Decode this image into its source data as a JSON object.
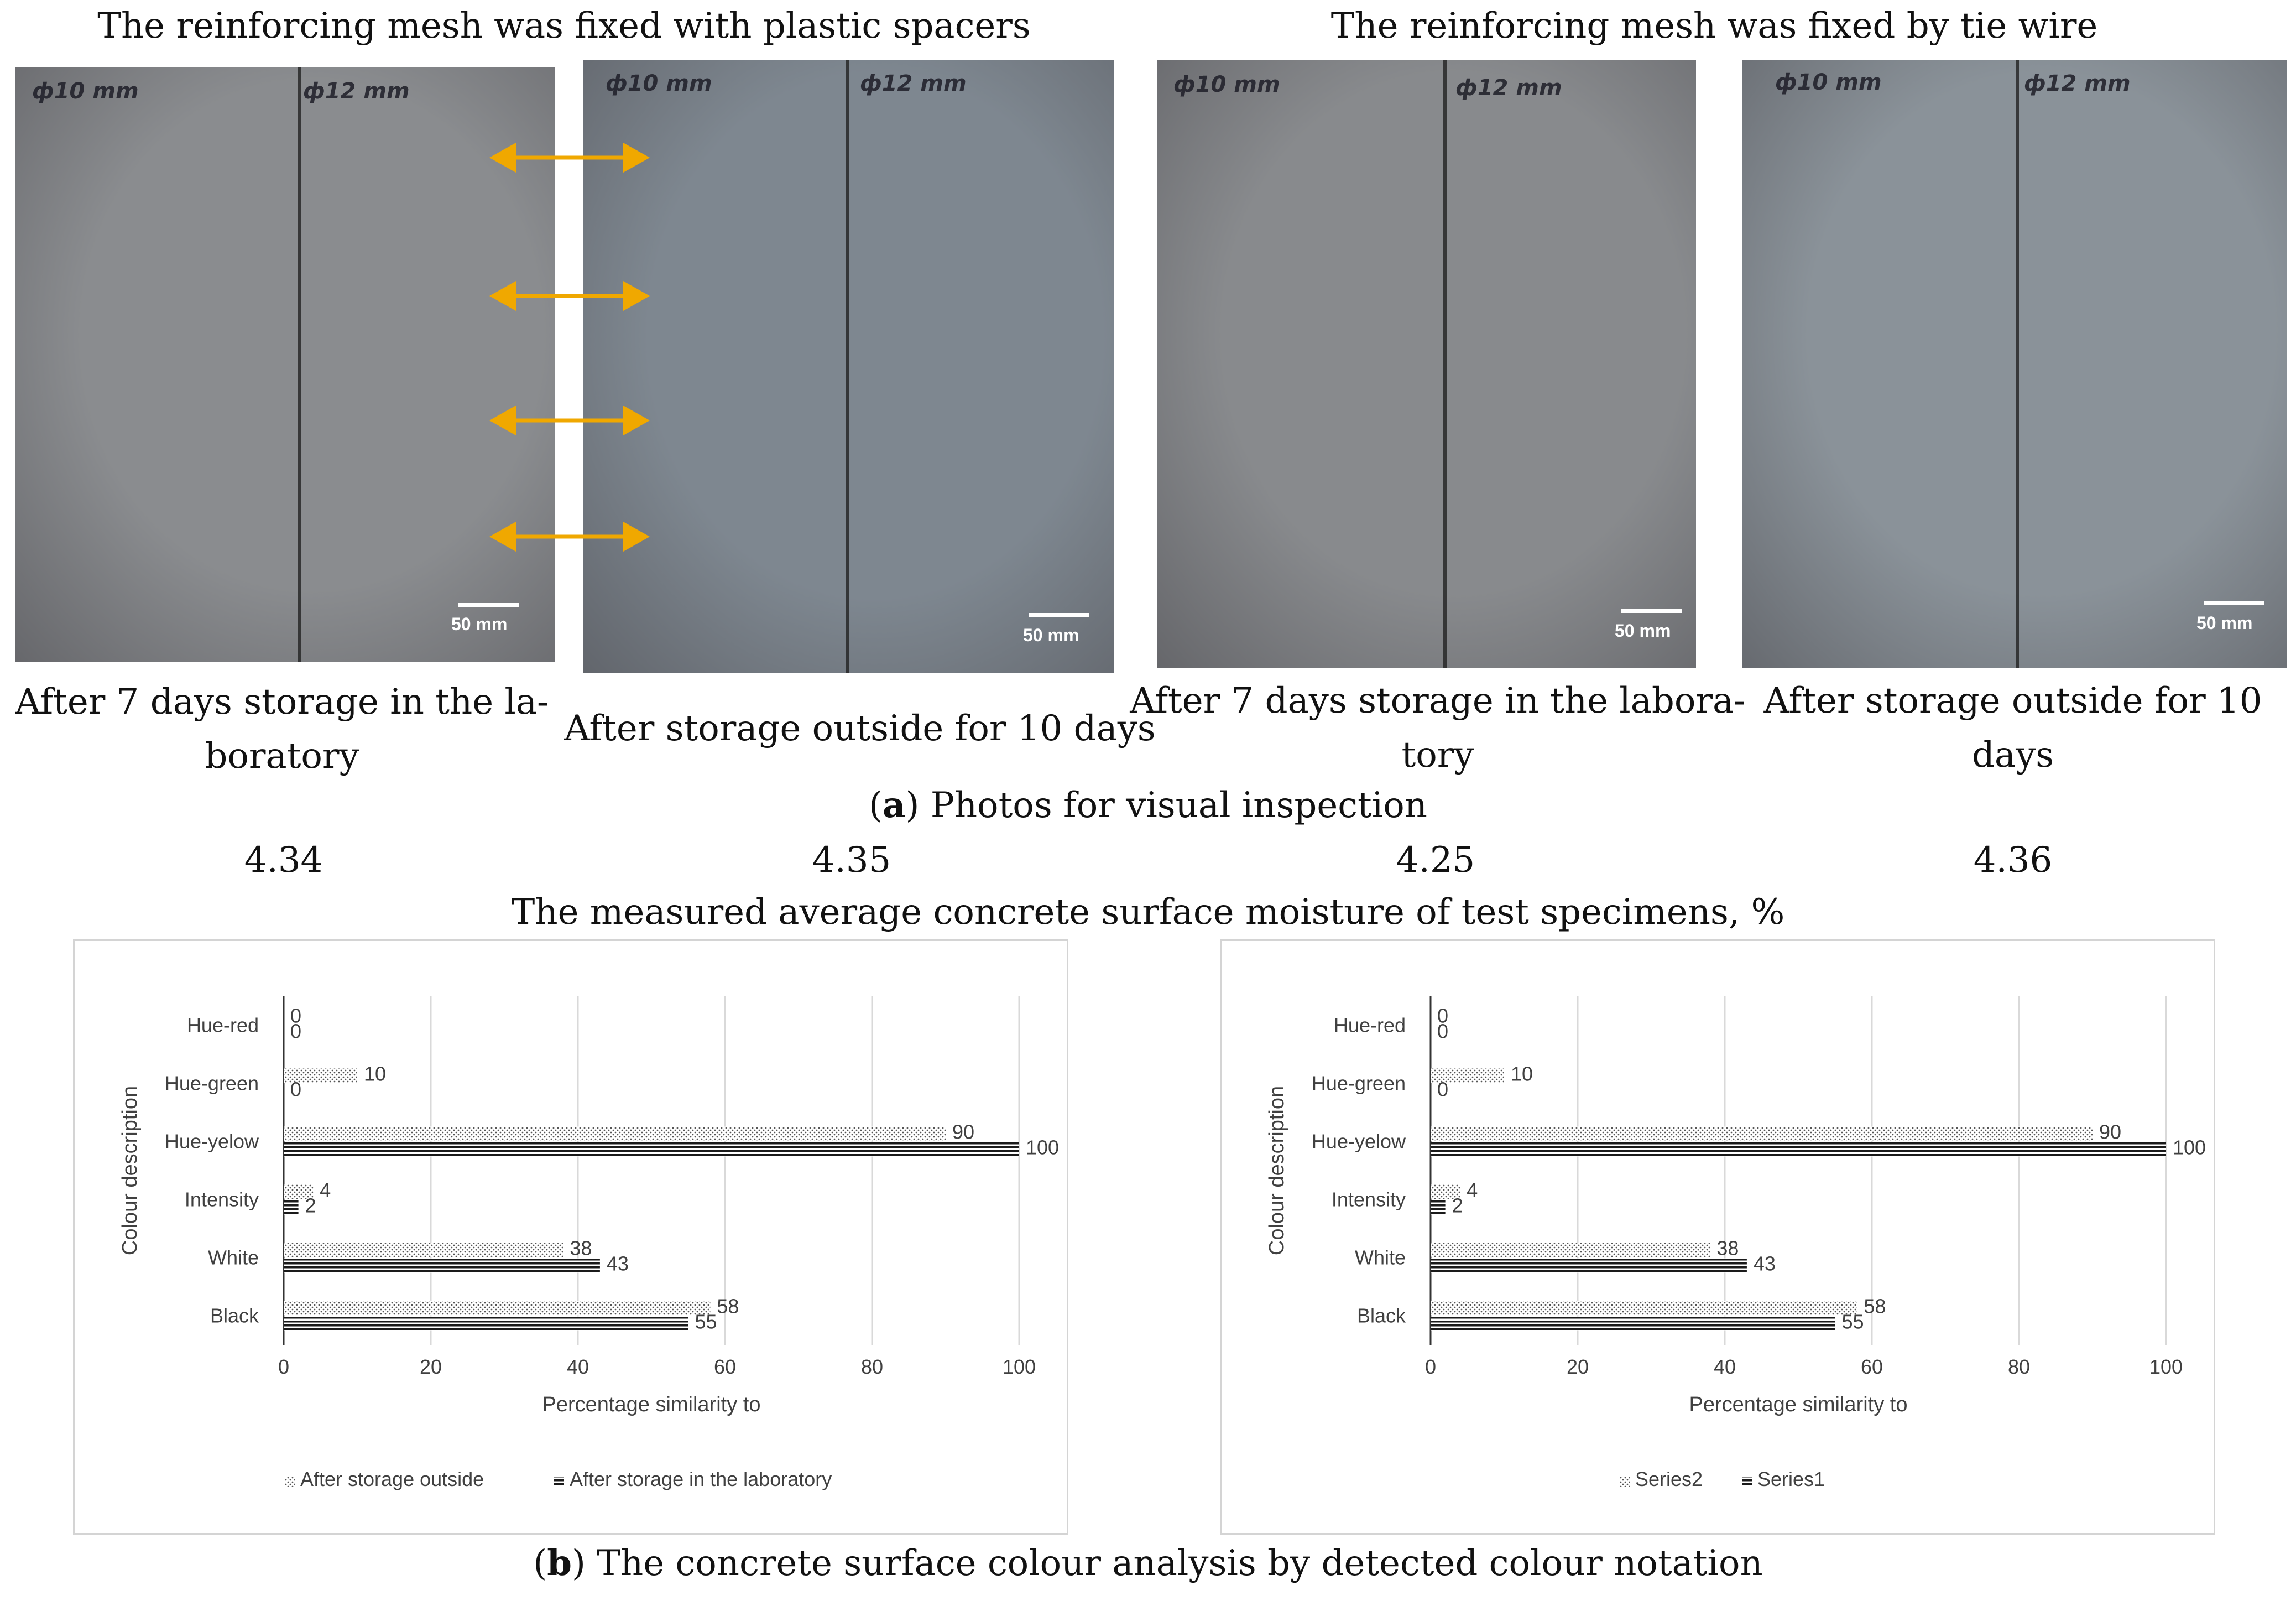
{
  "figure": {
    "group_headings": [
      "The reinforcing mesh was fixed with plastic spacers",
      "The reinforcing mesh was fixed by tie wire"
    ],
    "photos": [
      {
        "mark_left": "ф10 mm",
        "mark_right": "ф12 mm",
        "scale_label": "50 mm",
        "caption_line1": "After 7 days storage in the la-",
        "caption_line2": "boratory",
        "tone": "#8a8c8f"
      },
      {
        "mark_left": "ф10 mm",
        "mark_right": "ф12 mm",
        "scale_label": "50 mm",
        "caption_line1": "After storage outside for 10 days",
        "caption_line2": "",
        "tone": "#7e8790"
      },
      {
        "mark_left": "ф10 mm",
        "mark_right": "ф12 mm",
        "scale_label": "50 mm",
        "caption_line1": "After 7 days storage in the labora-",
        "caption_line2": "tory",
        "tone": "#888a8d"
      },
      {
        "mark_left": "ф10 mm",
        "mark_right": "ф12 mm",
        "scale_label": "50 mm",
        "caption_line1": "After storage outside for 10",
        "caption_line2": "days",
        "tone": "#8a9299"
      }
    ],
    "arrow_color": "#f0a800",
    "caption_a_bold": "a",
    "caption_a_text": ") Photos for visual inspection",
    "moisture_values": [
      "4.34",
      "4.35",
      "4.25",
      "4.36"
    ],
    "moisture_title": "The measured average concrete surface moisture of test specimens, %",
    "caption_b_bold": "b",
    "caption_b_text": ") The concrete surface colour analysis by detected colour notation"
  },
  "chart_data": [
    {
      "type": "bar",
      "orientation": "horizontal",
      "categories": [
        "Hue-red",
        "Hue-green",
        "Hue-yelow",
        "Intensity",
        "White",
        "Black"
      ],
      "series": [
        {
          "name": "After storage outside",
          "values": [
            0,
            10,
            90,
            4,
            38,
            58
          ],
          "pattern": "dots"
        },
        {
          "name": "After storage in the laboratory",
          "values": [
            0,
            0,
            100,
            2,
            43,
            55
          ],
          "pattern": "stripes"
        }
      ],
      "xlabel": "Percentage similarity to",
      "ylabel": "Colour description",
      "xlim": [
        0,
        100
      ],
      "xticks": [
        "0",
        "20",
        "40",
        "60",
        "80",
        "100"
      ],
      "grid": "vertical",
      "legend": "bottom"
    },
    {
      "type": "bar",
      "orientation": "horizontal",
      "categories": [
        "Hue-red",
        "Hue-green",
        "Hue-yelow",
        "Intensity",
        "White",
        "Black"
      ],
      "series": [
        {
          "name": "Series2",
          "values": [
            0,
            10,
            90,
            4,
            38,
            58
          ],
          "pattern": "dots"
        },
        {
          "name": "Series1",
          "values": [
            0,
            0,
            100,
            2,
            43,
            55
          ],
          "pattern": "stripes"
        }
      ],
      "xlabel": "Percentage similarity to",
      "ylabel": "Colour description",
      "xlim": [
        0,
        100
      ],
      "xticks": [
        "0",
        "20",
        "40",
        "60",
        "80",
        "100"
      ],
      "grid": "vertical",
      "legend": "bottom"
    }
  ]
}
